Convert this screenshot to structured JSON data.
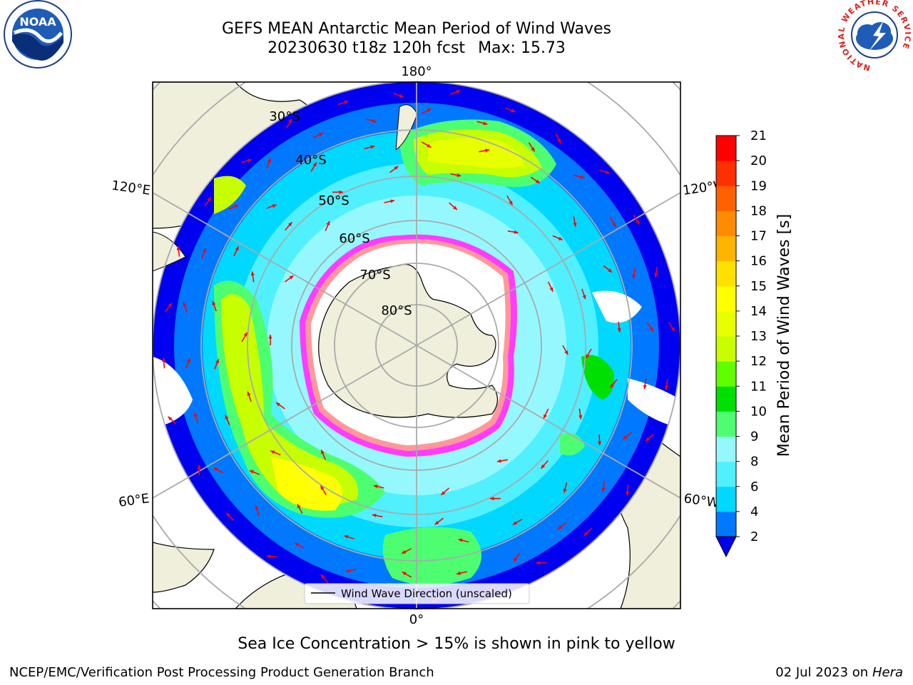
{
  "title": {
    "line1": "GEFS MEAN Antarctic Mean Period of Wind Waves",
    "run_info": "20230630 t18z 120h fcst",
    "max_label": "Max: 15.73"
  },
  "map": {
    "projection": "south-polar-stereographic",
    "longitude_labels": {
      "top": "180°",
      "bottom": "0°",
      "upper_left": "120°E",
      "lower_left": "60°E",
      "upper_right": "120°W",
      "lower_right": "60°W"
    },
    "latitude_labels": [
      "30°S",
      "40°S",
      "50°S",
      "60°S",
      "70°S",
      "80°S"
    ],
    "legend_label": "Wind Wave Direction (unscaled)",
    "arrow_color": "#ff0000",
    "land_color": "#efefdb",
    "sea_ice_colors": [
      "#ff3cff",
      "#ff9999",
      "#ffff66"
    ]
  },
  "colorbar": {
    "label": "Mean Period of Wind Waves [s]",
    "ticks": [
      "2",
      "4",
      "6",
      "8",
      "9",
      "10",
      "11",
      "12",
      "13",
      "14",
      "15",
      "16",
      "17",
      "18",
      "19",
      "20",
      "21"
    ],
    "colors": [
      "#0078ff",
      "#00d8ff",
      "#50f0ff",
      "#96f8ff",
      "#4dff70",
      "#00e000",
      "#60ff00",
      "#c8ff00",
      "#e8ff00",
      "#ffff00",
      "#ffe000",
      "#ffb400",
      "#ff8c00",
      "#ff6000",
      "#ff3000",
      "#ff0000"
    ],
    "under_color": "#0000f0"
  },
  "footnote": "Sea Ice Concentration > 15% is shown in pink to yellow",
  "credit": "NCEP/EMC/Verification Post Processing Product Generation Branch",
  "date": {
    "text": "02 Jul 2023 on ",
    "machine": "Hera"
  },
  "logos": {
    "noaa": "NOAA",
    "nws_ring": "NATIONAL WEATHER SERVICE"
  }
}
